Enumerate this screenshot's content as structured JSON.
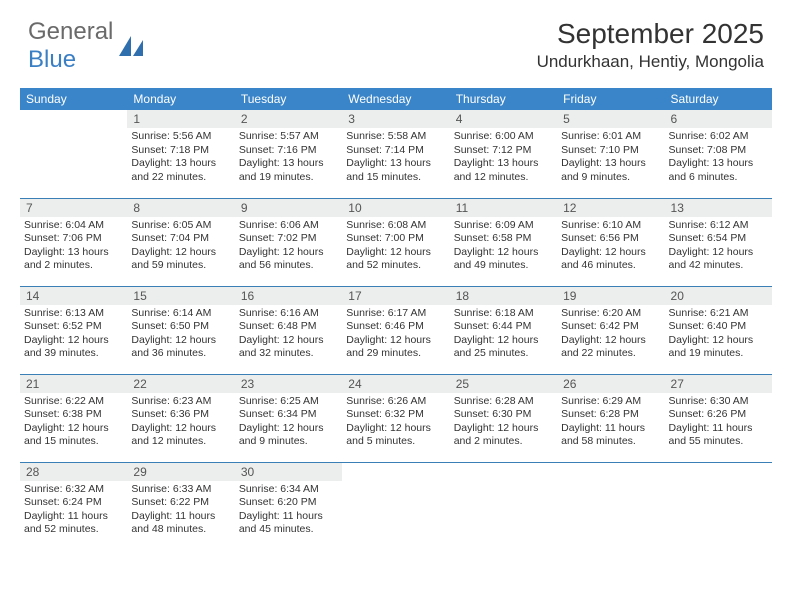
{
  "brand": {
    "general": "General",
    "blue": "Blue"
  },
  "title": "September 2025",
  "location": "Undurkhaan, Hentiy, Mongolia",
  "colors": {
    "header_bg": "#3a85c9",
    "header_text": "#ffffff",
    "daynum_bg": "#eceded",
    "border": "#3a7fb5",
    "brand_blue": "#3a7fc4",
    "brand_gray": "#6a6a6a",
    "text": "#333333",
    "background": "#ffffff"
  },
  "daysOfWeek": [
    "Sunday",
    "Monday",
    "Tuesday",
    "Wednesday",
    "Thursday",
    "Friday",
    "Saturday"
  ],
  "weeks": [
    [
      null,
      {
        "n": "1",
        "sunrise": "5:56 AM",
        "sunset": "7:18 PM",
        "daylight": "13 hours and 22 minutes."
      },
      {
        "n": "2",
        "sunrise": "5:57 AM",
        "sunset": "7:16 PM",
        "daylight": "13 hours and 19 minutes."
      },
      {
        "n": "3",
        "sunrise": "5:58 AM",
        "sunset": "7:14 PM",
        "daylight": "13 hours and 15 minutes."
      },
      {
        "n": "4",
        "sunrise": "6:00 AM",
        "sunset": "7:12 PM",
        "daylight": "13 hours and 12 minutes."
      },
      {
        "n": "5",
        "sunrise": "6:01 AM",
        "sunset": "7:10 PM",
        "daylight": "13 hours and 9 minutes."
      },
      {
        "n": "6",
        "sunrise": "6:02 AM",
        "sunset": "7:08 PM",
        "daylight": "13 hours and 6 minutes."
      }
    ],
    [
      {
        "n": "7",
        "sunrise": "6:04 AM",
        "sunset": "7:06 PM",
        "daylight": "13 hours and 2 minutes."
      },
      {
        "n": "8",
        "sunrise": "6:05 AM",
        "sunset": "7:04 PM",
        "daylight": "12 hours and 59 minutes."
      },
      {
        "n": "9",
        "sunrise": "6:06 AM",
        "sunset": "7:02 PM",
        "daylight": "12 hours and 56 minutes."
      },
      {
        "n": "10",
        "sunrise": "6:08 AM",
        "sunset": "7:00 PM",
        "daylight": "12 hours and 52 minutes."
      },
      {
        "n": "11",
        "sunrise": "6:09 AM",
        "sunset": "6:58 PM",
        "daylight": "12 hours and 49 minutes."
      },
      {
        "n": "12",
        "sunrise": "6:10 AM",
        "sunset": "6:56 PM",
        "daylight": "12 hours and 46 minutes."
      },
      {
        "n": "13",
        "sunrise": "6:12 AM",
        "sunset": "6:54 PM",
        "daylight": "12 hours and 42 minutes."
      }
    ],
    [
      {
        "n": "14",
        "sunrise": "6:13 AM",
        "sunset": "6:52 PM",
        "daylight": "12 hours and 39 minutes."
      },
      {
        "n": "15",
        "sunrise": "6:14 AM",
        "sunset": "6:50 PM",
        "daylight": "12 hours and 36 minutes."
      },
      {
        "n": "16",
        "sunrise": "6:16 AM",
        "sunset": "6:48 PM",
        "daylight": "12 hours and 32 minutes."
      },
      {
        "n": "17",
        "sunrise": "6:17 AM",
        "sunset": "6:46 PM",
        "daylight": "12 hours and 29 minutes."
      },
      {
        "n": "18",
        "sunrise": "6:18 AM",
        "sunset": "6:44 PM",
        "daylight": "12 hours and 25 minutes."
      },
      {
        "n": "19",
        "sunrise": "6:20 AM",
        "sunset": "6:42 PM",
        "daylight": "12 hours and 22 minutes."
      },
      {
        "n": "20",
        "sunrise": "6:21 AM",
        "sunset": "6:40 PM",
        "daylight": "12 hours and 19 minutes."
      }
    ],
    [
      {
        "n": "21",
        "sunrise": "6:22 AM",
        "sunset": "6:38 PM",
        "daylight": "12 hours and 15 minutes."
      },
      {
        "n": "22",
        "sunrise": "6:23 AM",
        "sunset": "6:36 PM",
        "daylight": "12 hours and 12 minutes."
      },
      {
        "n": "23",
        "sunrise": "6:25 AM",
        "sunset": "6:34 PM",
        "daylight": "12 hours and 9 minutes."
      },
      {
        "n": "24",
        "sunrise": "6:26 AM",
        "sunset": "6:32 PM",
        "daylight": "12 hours and 5 minutes."
      },
      {
        "n": "25",
        "sunrise": "6:28 AM",
        "sunset": "6:30 PM",
        "daylight": "12 hours and 2 minutes."
      },
      {
        "n": "26",
        "sunrise": "6:29 AM",
        "sunset": "6:28 PM",
        "daylight": "11 hours and 58 minutes."
      },
      {
        "n": "27",
        "sunrise": "6:30 AM",
        "sunset": "6:26 PM",
        "daylight": "11 hours and 55 minutes."
      }
    ],
    [
      {
        "n": "28",
        "sunrise": "6:32 AM",
        "sunset": "6:24 PM",
        "daylight": "11 hours and 52 minutes."
      },
      {
        "n": "29",
        "sunrise": "6:33 AM",
        "sunset": "6:22 PM",
        "daylight": "11 hours and 48 minutes."
      },
      {
        "n": "30",
        "sunrise": "6:34 AM",
        "sunset": "6:20 PM",
        "daylight": "11 hours and 45 minutes."
      },
      null,
      null,
      null,
      null
    ]
  ],
  "labels": {
    "sunrise_prefix": "Sunrise: ",
    "sunset_prefix": "Sunset: ",
    "daylight_prefix": "Daylight: "
  }
}
